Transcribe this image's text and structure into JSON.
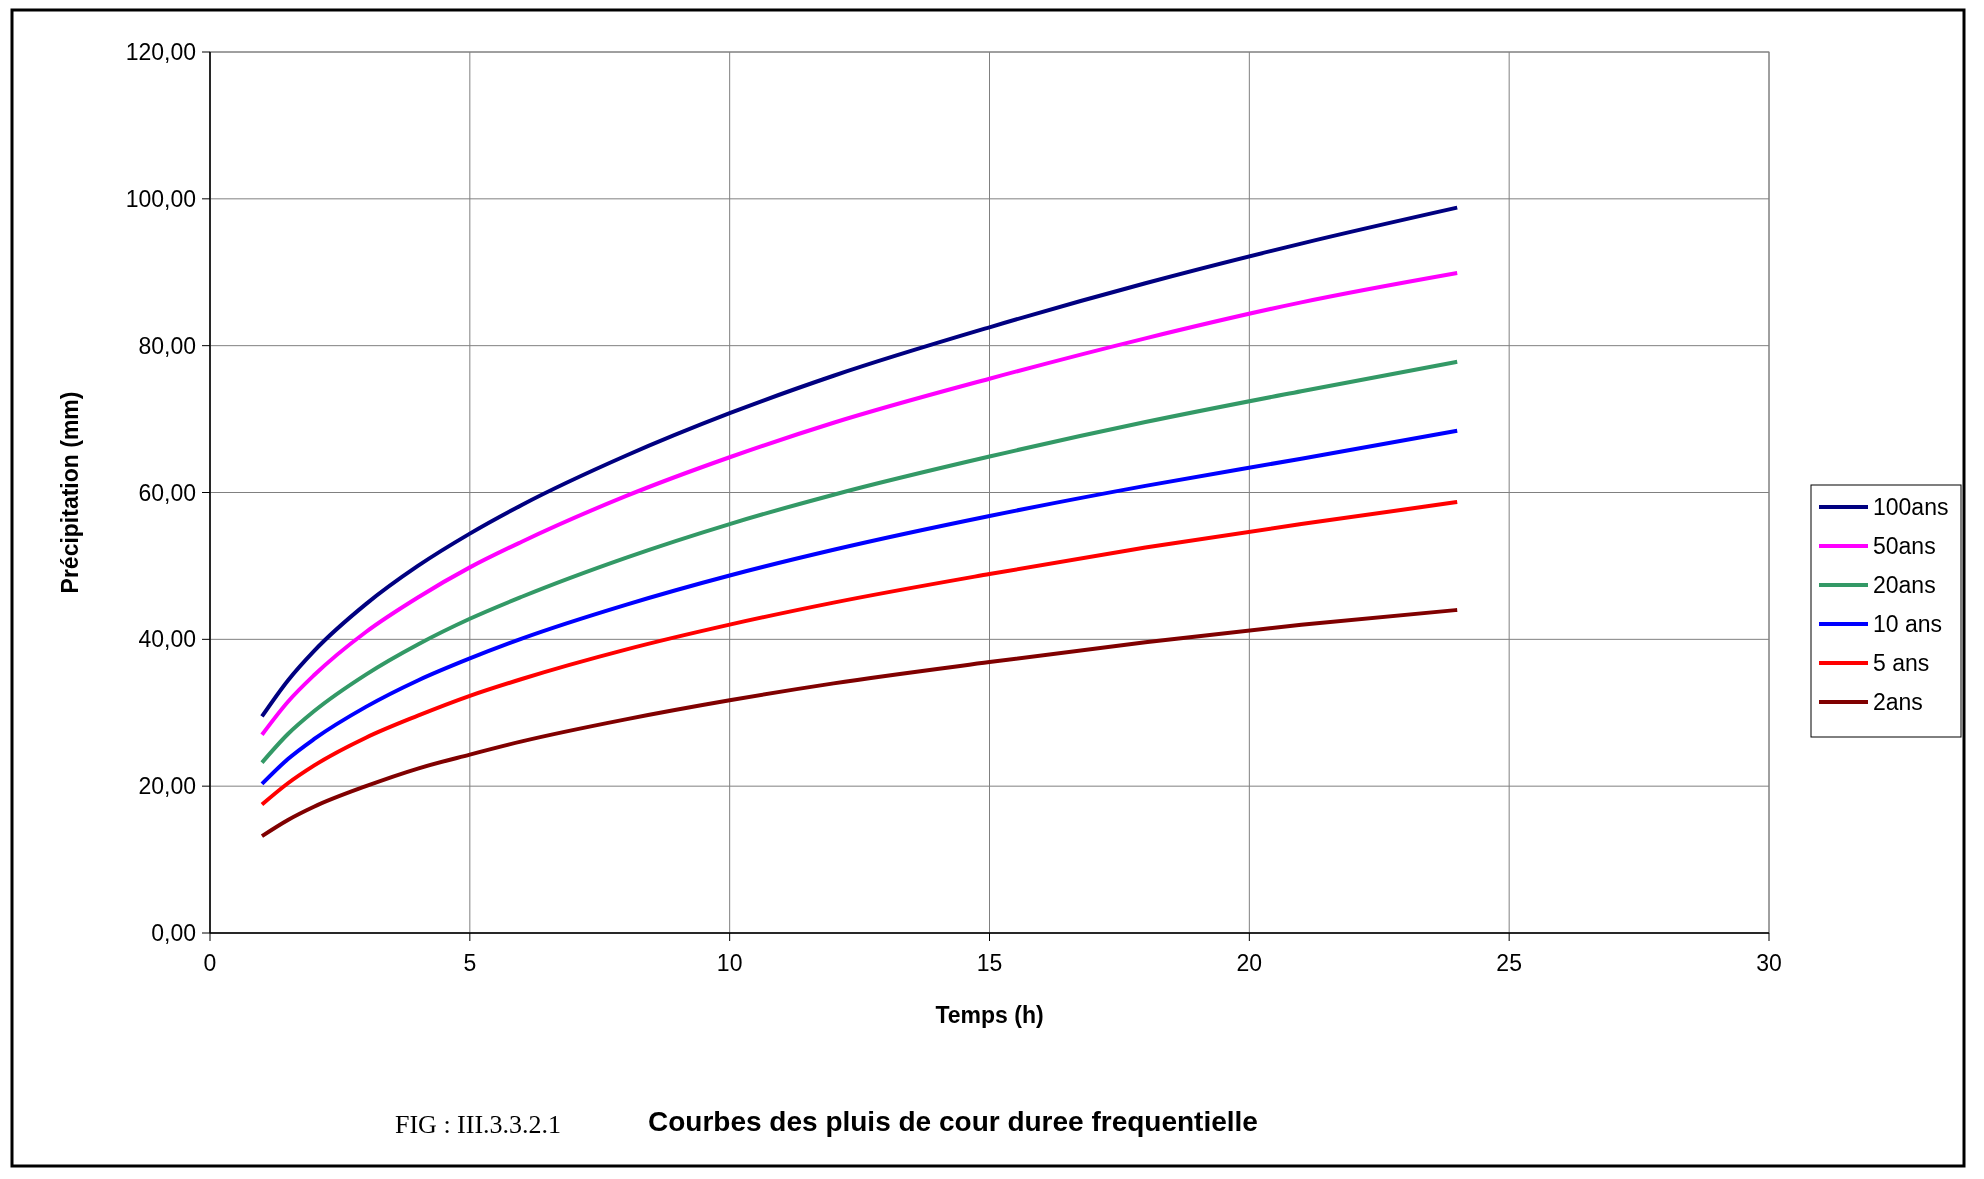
{
  "chart_data": {
    "type": "line",
    "title": "Courbes des pluis de cour duree frequentielle",
    "annotations": [
      "FIG : III.3.3.2.1"
    ],
    "xlabel": "Temps (h)",
    "ylabel": "Précipitation (mm)",
    "x": [
      1,
      1.5,
      2,
      3,
      4,
      5,
      6,
      8,
      10,
      12,
      15,
      18,
      21,
      24
    ],
    "series": [
      {
        "name": "100ans",
        "color": "#000080",
        "values": [
          29.5,
          34.4,
          38.4,
          44.8,
          50.0,
          54.4,
          58.3,
          65.0,
          70.8,
          75.9,
          82.5,
          88.5,
          93.9,
          98.8
        ]
      },
      {
        "name": "50ans",
        "color": "#ff00ff",
        "values": [
          27.0,
          31.5,
          35.1,
          41.0,
          45.7,
          49.8,
          53.3,
          59.5,
          64.8,
          69.5,
          75.5,
          81.0,
          85.9,
          89.9
        ]
      },
      {
        "name": "20ans",
        "color": "#339966",
        "values": [
          23.2,
          27.1,
          30.2,
          35.2,
          39.3,
          42.8,
          45.8,
          51.1,
          55.7,
          59.7,
          64.9,
          69.6,
          73.8,
          77.8
        ]
      },
      {
        "name": "10 ans",
        "color": "#0000ff",
        "values": [
          20.3,
          23.7,
          26.4,
          30.8,
          34.4,
          37.4,
          40.1,
          44.7,
          48.7,
          52.2,
          56.8,
          60.9,
          64.6,
          68.4
        ]
      },
      {
        "name": "5 ans",
        "color": "#ff0000",
        "values": [
          17.5,
          20.4,
          22.8,
          26.6,
          29.6,
          32.3,
          34.6,
          38.6,
          42.0,
          45.0,
          48.9,
          52.5,
          55.7,
          58.7
        ]
      },
      {
        "name": "2ans",
        "color": "#800000",
        "values": [
          13.2,
          15.4,
          17.2,
          20.0,
          22.4,
          24.3,
          26.1,
          29.1,
          31.7,
          34.0,
          36.9,
          39.6,
          42.0,
          44.0
        ]
      }
    ],
    "xlim": [
      0,
      30
    ],
    "xticks": [
      0,
      5,
      10,
      15,
      20,
      25,
      30
    ],
    "ylim": [
      0,
      120
    ],
    "yticks": [
      {
        "value": 0,
        "label": "0,00"
      },
      {
        "value": 20,
        "label": "20,00"
      },
      {
        "value": 40,
        "label": "40,00"
      },
      {
        "value": 60,
        "label": "60,00"
      },
      {
        "value": 80,
        "label": "80,00"
      },
      {
        "value": 100,
        "label": "100,00"
      },
      {
        "value": 120,
        "label": "120,00"
      }
    ],
    "grid": true,
    "legend": "right",
    "marker": "none",
    "line_style": "solid"
  }
}
